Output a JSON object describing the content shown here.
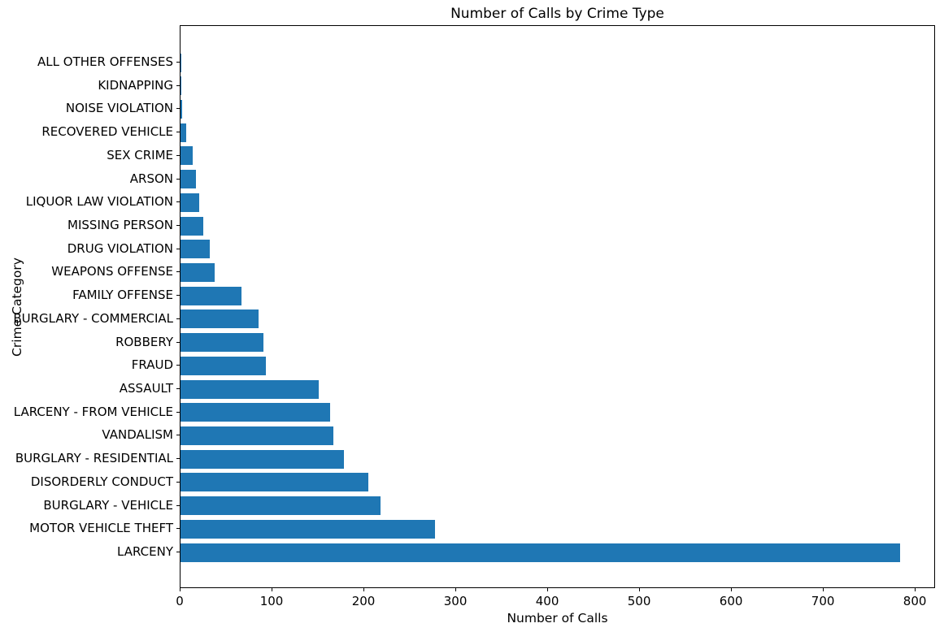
{
  "figure": {
    "background_color": "#ffffff",
    "text_color": "#000000",
    "spine_color": "#000000"
  },
  "chart_data": {
    "type": "bar",
    "orientation": "horizontal",
    "title": "Number of Calls by Crime Type",
    "xlabel": "Number of Calls",
    "ylabel": "Crime Category",
    "bar_color": "#1f77b4",
    "grid": false,
    "legend": "none",
    "xlim": [
      0,
      822
    ],
    "xticks": [
      0,
      100,
      200,
      300,
      400,
      500,
      600,
      700,
      800
    ],
    "category_order": "top to bottom as displayed (ascending values)",
    "categories": [
      "ALL OTHER OFFENSES",
      "KIDNAPPING",
      "NOISE VIOLATION",
      "RECOVERED VEHICLE",
      "SEX CRIME",
      "ARSON",
      "LIQUOR LAW VIOLATION",
      "MISSING PERSON",
      "DRUG VIOLATION",
      "WEAPONS OFFENSE",
      "FAMILY OFFENSE",
      "BURGLARY - COMMERCIAL",
      "ROBBERY",
      "FRAUD",
      "ASSAULT",
      "LARCENY - FROM VEHICLE",
      "VANDALISM",
      "BURGLARY - RESIDENTIAL",
      "DISORDERLY CONDUCT",
      "BURGLARY - VEHICLE",
      "MOTOR VEHICLE THEFT",
      "LARCENY"
    ],
    "values": [
      1,
      1,
      2,
      6,
      13,
      17,
      20,
      25,
      32,
      37,
      66,
      85,
      90,
      93,
      150,
      163,
      166,
      178,
      204,
      218,
      277,
      783
    ]
  }
}
